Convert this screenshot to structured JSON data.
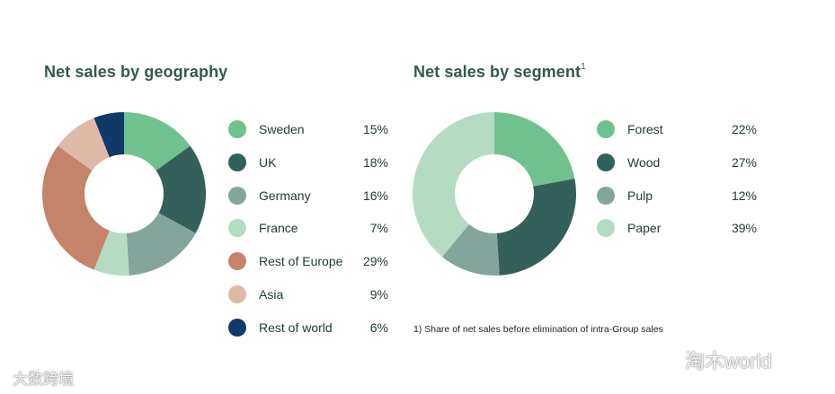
{
  "chart_data": [
    {
      "type": "pie",
      "title": "Net sales by geography",
      "categories": [
        "Sweden",
        "UK",
        "Germany",
        "France",
        "Rest of Europe",
        "Asia",
        "Rest of world"
      ],
      "values": [
        15,
        18,
        16,
        7,
        29,
        9,
        6
      ],
      "value_labels": [
        "15%",
        "18%",
        "16%",
        "7%",
        "29%",
        "9%",
        "6%"
      ],
      "colors": [
        "#71c08f",
        "#33605a",
        "#84a59c",
        "#b4dcc2",
        "#c48469",
        "#dfb9a8",
        "#0f3968"
      ],
      "donut": true,
      "legend": "right"
    },
    {
      "type": "pie",
      "title": "Net sales by segment",
      "title_superscript": "1",
      "categories": [
        "Forest",
        "Wood",
        "Pulp",
        "Paper"
      ],
      "values": [
        22,
        27,
        12,
        39
      ],
      "value_labels": [
        "22%",
        "27%",
        "12%",
        "39%"
      ],
      "colors": [
        "#71c08f",
        "#33605a",
        "#84a59c",
        "#b4dcc2"
      ],
      "donut": true,
      "legend": "right"
    }
  ],
  "footnote": "1) Share of net sales before elimination of intra-Group sales",
  "watermark_left": "大数跨境",
  "watermark_right": "淘木world"
}
